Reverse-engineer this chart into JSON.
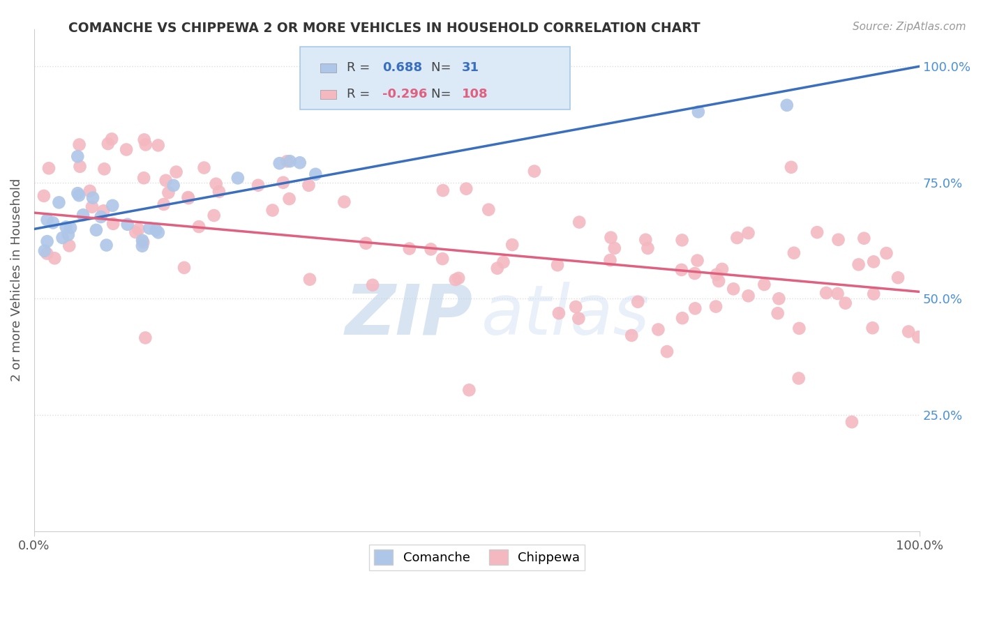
{
  "title": "COMANCHE VS CHIPPEWA 2 OR MORE VEHICLES IN HOUSEHOLD CORRELATION CHART",
  "source": "Source: ZipAtlas.com",
  "ylabel": "2 or more Vehicles in Household",
  "xlim": [
    0.0,
    1.0
  ],
  "ylim": [
    0.0,
    1.08
  ],
  "comanche_R": 0.688,
  "comanche_N": 31,
  "chippewa_R": -0.296,
  "chippewa_N": 108,
  "comanche_color": "#aec6e8",
  "chippewa_color": "#f4b8c1",
  "comanche_line_color": "#3a6fbf",
  "chippewa_line_color": "#e06080",
  "legend_box_color": "#dce9f7",
  "tick_color": "#4a90d9",
  "watermark_zip_color": "#b8cfe8",
  "watermark_atlas_color": "#c8daf0",
  "comanche_seed": 42,
  "chippewa_seed": 99,
  "bg_color": "#ffffff",
  "grid_color": "#dddddd",
  "spine_color": "#cccccc",
  "title_color": "#333333",
  "ylabel_color": "#555555",
  "source_color": "#999999"
}
